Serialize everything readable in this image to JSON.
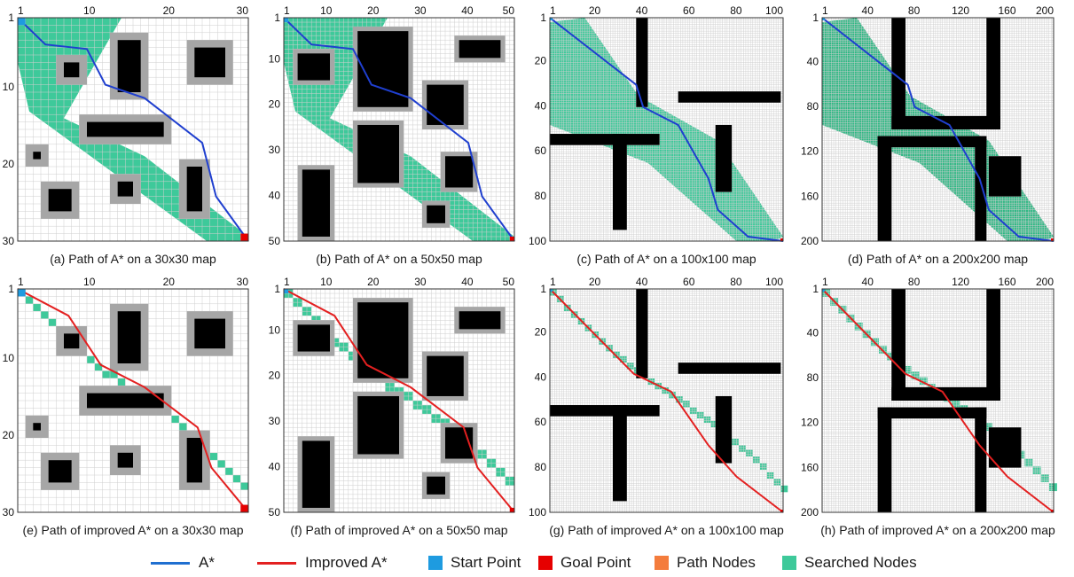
{
  "colors": {
    "grid_line": "#cfcfcf",
    "grid_bg": "#ffffff",
    "obstacle": "#000000",
    "obstacle_margin": "#a6a6a6",
    "astar_path": "#1f3fcf",
    "improved_path": "#e32020",
    "start_point": "#1e9be0",
    "goal_point": "#e60000",
    "path_nodes": "#f47c3c",
    "searched_nodes": "#3ec99a",
    "searched_nodes_large": "#2fb884"
  },
  "panels": [
    {
      "id": "a",
      "caption": "(a) Path of A* on a 30x30 map",
      "map_size": 30,
      "method": "A*",
      "x_ticks": [
        "1",
        "10",
        "20",
        "30"
      ],
      "y_ticks": [
        "1",
        "10",
        "20",
        "30"
      ]
    },
    {
      "id": "b",
      "caption": "(b) Path of A* on a 50x50 map",
      "map_size": 50,
      "method": "A*",
      "x_ticks": [
        "1",
        "10",
        "20",
        "30",
        "40",
        "50"
      ],
      "y_ticks": [
        "1",
        "10",
        "20",
        "30",
        "40",
        "50"
      ]
    },
    {
      "id": "c",
      "caption": "(c) Path of A* on a 100x100 map",
      "map_size": 100,
      "method": "A*",
      "x_ticks": [
        "1",
        "20",
        "40",
        "60",
        "80",
        "100"
      ],
      "y_ticks": [
        "1",
        "20",
        "40",
        "60",
        "80",
        "100"
      ]
    },
    {
      "id": "d",
      "caption": "(d) Path of A* on a 200x200  map",
      "map_size": 200,
      "method": "A*",
      "x_ticks": [
        "1",
        "40",
        "80",
        "120",
        "160",
        "200"
      ],
      "y_ticks": [
        "1",
        "40",
        "80",
        "120",
        "160",
        "200"
      ]
    },
    {
      "id": "e",
      "caption": "(e) Path of improved A* on a 30x30 map",
      "map_size": 30,
      "method": "Improved A*",
      "x_ticks": [
        "1",
        "10",
        "20",
        "30"
      ],
      "y_ticks": [
        "1",
        "10",
        "20",
        "30"
      ]
    },
    {
      "id": "f",
      "caption": "(f) Path of improved A* on a 50x50 map",
      "map_size": 50,
      "method": "Improved A*",
      "x_ticks": [
        "1",
        "10",
        "20",
        "30",
        "40",
        "50"
      ],
      "y_ticks": [
        "1",
        "10",
        "20",
        "30",
        "40",
        "50"
      ]
    },
    {
      "id": "g",
      "caption": "(g) Path of improved A* on a 100x100 map",
      "map_size": 100,
      "method": "Improved A*",
      "x_ticks": [
        "1",
        "20",
        "40",
        "60",
        "80",
        "100"
      ],
      "y_ticks": [
        "1",
        "20",
        "40",
        "60",
        "80",
        "100"
      ]
    },
    {
      "id": "h",
      "caption": "(h) Path of improved A* on a 200x200 map",
      "map_size": 200,
      "method": "Improved A*",
      "x_ticks": [
        "1",
        "40",
        "80",
        "120",
        "160",
        "200"
      ],
      "y_ticks": [
        "1",
        "40",
        "80",
        "120",
        "160",
        "200"
      ]
    }
  ],
  "legend": [
    {
      "label": "A*",
      "kind": "line",
      "color": "#1f6fd0"
    },
    {
      "label": "Improved A*",
      "kind": "line",
      "color": "#e32020"
    },
    {
      "label": "Start Point",
      "kind": "box",
      "color": "#1e9be0"
    },
    {
      "label": "Goal Point",
      "kind": "box",
      "color": "#e60000"
    },
    {
      "label": "Path Nodes",
      "kind": "box",
      "color": "#f47c3c"
    },
    {
      "label": "Searched Nodes",
      "kind": "box",
      "color": "#3ec99a"
    }
  ]
}
